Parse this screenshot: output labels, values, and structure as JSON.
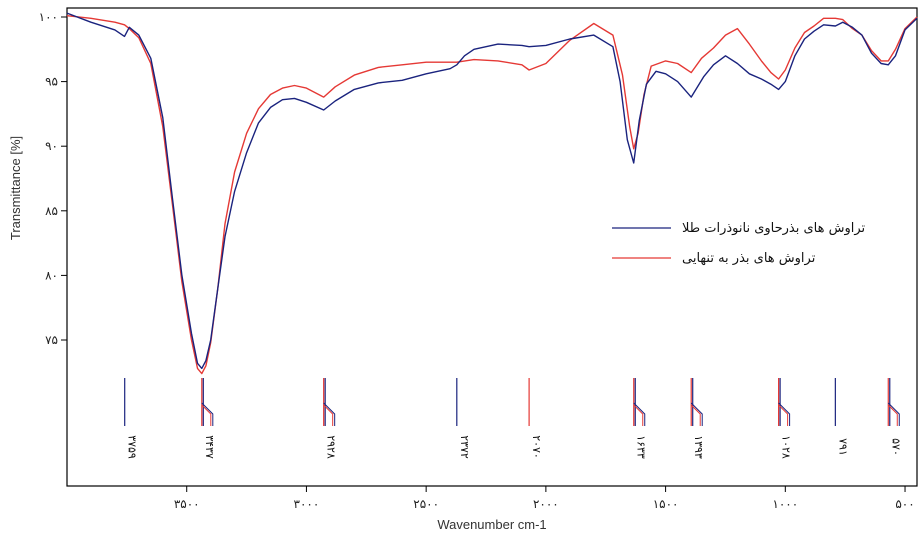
{
  "chart_data": {
    "type": "line",
    "xlabel": "Wavenumber cm-1",
    "ylabel": "Transmittance [%]",
    "xlim": [
      4000,
      450
    ],
    "ylim": [
      71,
      101
    ],
    "yticks": [
      {
        "value": 100,
        "label": "۱۰۰"
      },
      {
        "value": 95,
        "label": "۹۵"
      },
      {
        "value": 90,
        "label": "۹۰"
      },
      {
        "value": 85,
        "label": "۸۵"
      },
      {
        "value": 80,
        "label": "۸۰"
      },
      {
        "value": 75,
        "label": "۷۵"
      }
    ],
    "xticks": [
      {
        "value": 3500,
        "label": "۳۵۰۰"
      },
      {
        "value": 3000,
        "label": "۳۰۰۰"
      },
      {
        "value": 2500,
        "label": "۲۵۰۰"
      },
      {
        "value": 2000,
        "label": "۲۰۰۰"
      },
      {
        "value": 1500,
        "label": "۱۵۰۰"
      },
      {
        "value": 1000,
        "label": "۱۰۰۰"
      },
      {
        "value": 500,
        "label": "۵۰۰"
      }
    ],
    "legend_position": "right",
    "series": [
      {
        "name": "تراوش های بذرحاوی نانوذرات طلا",
        "color": "#1a237e",
        "points": [
          [
            4000,
            100.3
          ],
          [
            3900,
            99.6
          ],
          [
            3800,
            99.0
          ],
          [
            3760,
            98.5
          ],
          [
            3740,
            99.2
          ],
          [
            3700,
            98.6
          ],
          [
            3650,
            96.8
          ],
          [
            3600,
            92.2
          ],
          [
            3560,
            86.0
          ],
          [
            3520,
            80.0
          ],
          [
            3480,
            75.5
          ],
          [
            3455,
            73.2
          ],
          [
            3437,
            72.8
          ],
          [
            3420,
            73.4
          ],
          [
            3400,
            75.0
          ],
          [
            3370,
            79.0
          ],
          [
            3340,
            83.0
          ],
          [
            3300,
            86.5
          ],
          [
            3250,
            89.5
          ],
          [
            3200,
            91.8
          ],
          [
            3150,
            93.0
          ],
          [
            3100,
            93.6
          ],
          [
            3050,
            93.7
          ],
          [
            3000,
            93.4
          ],
          [
            2928,
            92.8
          ],
          [
            2880,
            93.5
          ],
          [
            2800,
            94.4
          ],
          [
            2700,
            94.9
          ],
          [
            2600,
            95.1
          ],
          [
            2500,
            95.6
          ],
          [
            2400,
            96.0
          ],
          [
            2372,
            96.3
          ],
          [
            2340,
            97.0
          ],
          [
            2300,
            97.5
          ],
          [
            2200,
            97.9
          ],
          [
            2100,
            97.8
          ],
          [
            2070,
            97.7
          ],
          [
            2000,
            97.8
          ],
          [
            1900,
            98.3
          ],
          [
            1800,
            98.6
          ],
          [
            1720,
            97.7
          ],
          [
            1690,
            95.0
          ],
          [
            1660,
            90.5
          ],
          [
            1633,
            88.7
          ],
          [
            1610,
            92.0
          ],
          [
            1580,
            94.8
          ],
          [
            1540,
            95.8
          ],
          [
            1500,
            95.6
          ],
          [
            1450,
            95.0
          ],
          [
            1393,
            93.8
          ],
          [
            1340,
            95.4
          ],
          [
            1300,
            96.3
          ],
          [
            1250,
            97.0
          ],
          [
            1200,
            96.4
          ],
          [
            1150,
            95.6
          ],
          [
            1100,
            95.2
          ],
          [
            1060,
            94.8
          ],
          [
            1028,
            94.4
          ],
          [
            1000,
            95.0
          ],
          [
            960,
            97.0
          ],
          [
            920,
            98.3
          ],
          [
            880,
            98.9
          ],
          [
            840,
            99.4
          ],
          [
            791,
            99.3
          ],
          [
            760,
            99.6
          ],
          [
            720,
            99.2
          ],
          [
            680,
            98.6
          ],
          [
            640,
            97.2
          ],
          [
            600,
            96.4
          ],
          [
            570,
            96.3
          ],
          [
            540,
            97.0
          ],
          [
            500,
            99.0
          ],
          [
            450,
            99.9
          ]
        ]
      },
      {
        "name": "تراوش های بذر به تنهایی",
        "color": "#e53935",
        "points": [
          [
            4000,
            100.1
          ],
          [
            3900,
            99.9
          ],
          [
            3800,
            99.6
          ],
          [
            3760,
            99.4
          ],
          [
            3740,
            99.1
          ],
          [
            3700,
            98.4
          ],
          [
            3650,
            96.4
          ],
          [
            3600,
            91.5
          ],
          [
            3560,
            85.5
          ],
          [
            3520,
            79.5
          ],
          [
            3480,
            75.0
          ],
          [
            3455,
            72.8
          ],
          [
            3437,
            72.4
          ],
          [
            3420,
            73.0
          ],
          [
            3400,
            74.8
          ],
          [
            3370,
            79.0
          ],
          [
            3340,
            84.0
          ],
          [
            3300,
            88.0
          ],
          [
            3250,
            91.0
          ],
          [
            3200,
            92.9
          ],
          [
            3150,
            94.0
          ],
          [
            3100,
            94.5
          ],
          [
            3050,
            94.7
          ],
          [
            3000,
            94.5
          ],
          [
            2928,
            93.8
          ],
          [
            2880,
            94.6
          ],
          [
            2800,
            95.5
          ],
          [
            2700,
            96.1
          ],
          [
            2600,
            96.3
          ],
          [
            2500,
            96.5
          ],
          [
            2400,
            96.5
          ],
          [
            2372,
            96.5
          ],
          [
            2300,
            96.7
          ],
          [
            2200,
            96.6
          ],
          [
            2100,
            96.3
          ],
          [
            2070,
            95.9
          ],
          [
            2000,
            96.4
          ],
          [
            1900,
            98.2
          ],
          [
            1800,
            99.5
          ],
          [
            1720,
            98.6
          ],
          [
            1680,
            95.5
          ],
          [
            1650,
            91.5
          ],
          [
            1633,
            89.8
          ],
          [
            1615,
            91.0
          ],
          [
            1590,
            94.0
          ],
          [
            1560,
            96.2
          ],
          [
            1500,
            96.6
          ],
          [
            1450,
            96.4
          ],
          [
            1393,
            95.7
          ],
          [
            1350,
            96.8
          ],
          [
            1300,
            97.6
          ],
          [
            1250,
            98.6
          ],
          [
            1200,
            99.1
          ],
          [
            1150,
            97.9
          ],
          [
            1100,
            96.6
          ],
          [
            1060,
            95.7
          ],
          [
            1028,
            95.2
          ],
          [
            1000,
            95.9
          ],
          [
            960,
            97.6
          ],
          [
            920,
            98.8
          ],
          [
            880,
            99.3
          ],
          [
            840,
            99.9
          ],
          [
            791,
            99.9
          ],
          [
            760,
            99.8
          ],
          [
            720,
            99.1
          ],
          [
            680,
            98.6
          ],
          [
            640,
            97.4
          ],
          [
            600,
            96.6
          ],
          [
            570,
            96.6
          ],
          [
            540,
            97.5
          ],
          [
            500,
            99.1
          ],
          [
            450,
            100.0
          ]
        ]
      }
    ],
    "peak_markers": [
      {
        "value": 3759,
        "label": "۳۷۵۹",
        "blue": true,
        "red": false
      },
      {
        "value": 3437,
        "label": "۳۴۳۷",
        "blue": true,
        "red": true
      },
      {
        "value": 2928,
        "label": "۲۹۲۸",
        "blue": true,
        "red": true
      },
      {
        "value": 2372,
        "label": "۲۳۷۲",
        "blue": true,
        "red": false
      },
      {
        "value": 2070,
        "label": "۲۰۷۰",
        "blue": false,
        "red": true
      },
      {
        "value": 1633,
        "label": "۱۶۳۳",
        "blue": true,
        "red": true
      },
      {
        "value": 1393,
        "label": "۱۳۹۳",
        "blue": true,
        "red": true
      },
      {
        "value": 1028,
        "label": "۱۰۲۸",
        "blue": true,
        "red": true
      },
      {
        "value": 791,
        "label": "۷۹۱",
        "blue": true,
        "red": false
      },
      {
        "value": 570,
        "label": "۵۷۰",
        "blue": true,
        "red": true
      }
    ]
  }
}
